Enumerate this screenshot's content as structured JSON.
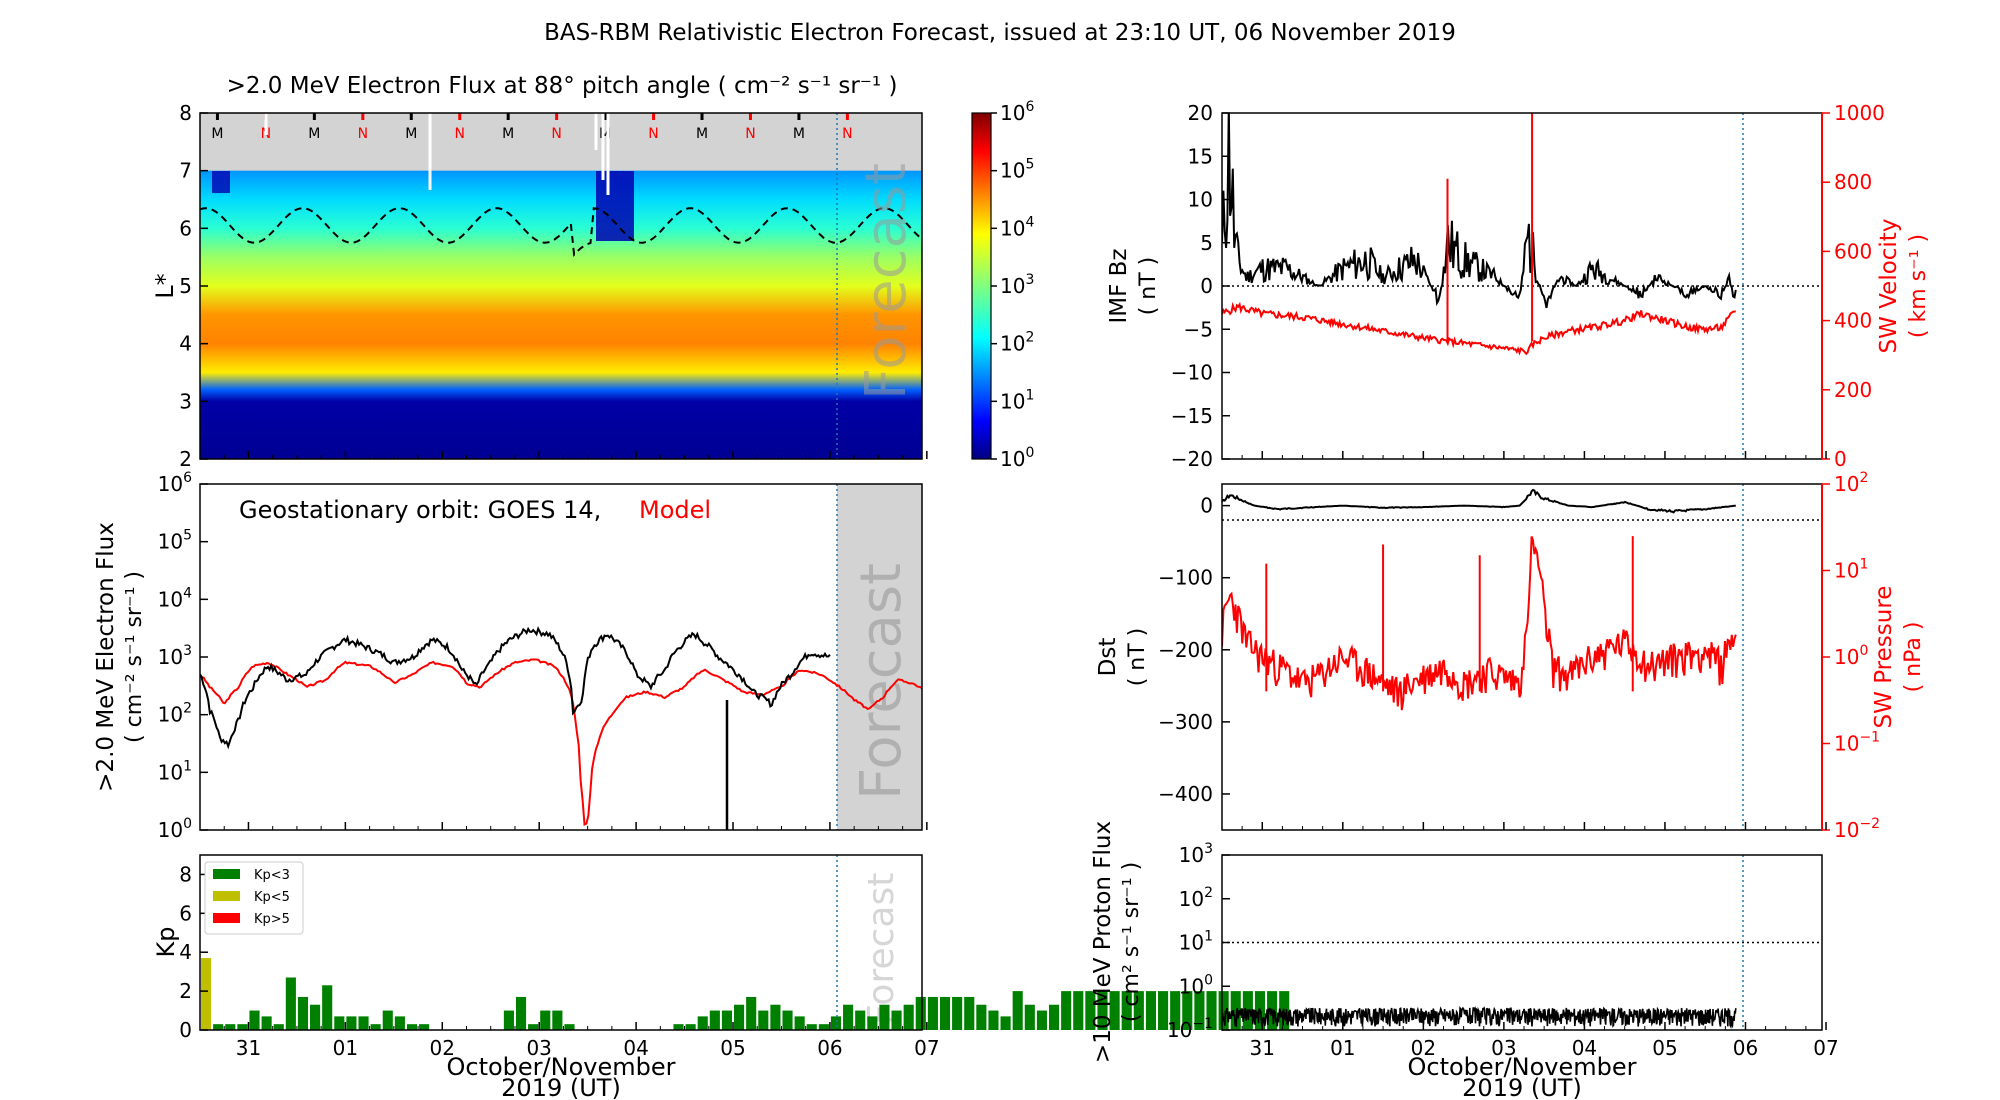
{
  "page_title": "BAS-RBM Relativistic Electron Forecast, issued at 23:10 UT, 06 November 2019",
  "colors": {
    "model": "#ff0000",
    "observed": "#000000",
    "kp_low": "#008000",
    "kp_mid": "#bfbf00",
    "kp_high": "#ff0000",
    "forecast_shade": "#d3d3d3",
    "forecast_line": "#1f77b4"
  },
  "shared_x_axis": {
    "tick_labels": [
      "31",
      "01",
      "02",
      "03",
      "04",
      "05",
      "06",
      "07"
    ],
    "label_line1": "October/November",
    "label_line2": "2019 (UT)",
    "forecast_start": "06 Nov 2019 ~11:00 UT"
  },
  "chart_data": [
    {
      "id": "lstar_flux_map",
      "type": "heatmap",
      "title": ">2.0 MeV Electron Flux at 88° pitch angle ( cm⁻² s⁻¹ sr⁻¹ )",
      "ylabel": "L*",
      "ylim": [
        2,
        8
      ],
      "yticks": [
        "2",
        "3",
        "4",
        "5",
        "6",
        "7",
        "8"
      ],
      "colorbar": {
        "scale": "log",
        "range": [
          1,
          1000000
        ],
        "tick_labels": [
          "10",
          "10",
          "10",
          "10",
          "10",
          "10",
          "10"
        ],
        "tick_exps": [
          "0",
          "1",
          "2",
          "3",
          "4",
          "5",
          "6"
        ],
        "colormap": "jet"
      },
      "outer_boundary_lstar": 7,
      "magnetopause_markers": [
        "M",
        "N",
        "M",
        "N",
        "M",
        "N",
        "M",
        "N",
        "M",
        "N",
        "M",
        "N",
        "M",
        "N"
      ],
      "watermark": "Forecast",
      "flux_profile_log10": [
        [
          2.0,
          0.1
        ],
        [
          3.0,
          0.2
        ],
        [
          3.2,
          1.2
        ],
        [
          3.5,
          4.0
        ],
        [
          4.0,
          4.6
        ],
        [
          4.5,
          4.5
        ],
        [
          5.0,
          3.7
        ],
        [
          5.5,
          3.2
        ],
        [
          6.0,
          2.4
        ],
        [
          6.5,
          1.9
        ],
        [
          7.0,
          1.5
        ]
      ]
    },
    {
      "id": "geo_flux",
      "type": "line",
      "title": "Geostationary orbit:   GOES 14,",
      "title_model": "Model",
      "ylabel": ">2.0 MeV Electron Flux",
      "ylabel2": "( cm⁻² s⁻¹ sr⁻¹ )",
      "yscale": "log",
      "ylim": [
        1,
        1000000
      ],
      "ytick_exps": [
        "0",
        "1",
        "2",
        "3",
        "4",
        "5",
        "6"
      ],
      "watermark": "Forecast",
      "series": [
        {
          "name": "GOES 14",
          "color": "#000000",
          "x": [
            0,
            0.1,
            0.2,
            0.3,
            0.4,
            0.55,
            0.7,
            0.9,
            1.1,
            1.3,
            1.5,
            1.75,
            2.0,
            2.2,
            2.4,
            2.55,
            2.7,
            2.85,
            3.0,
            3.2,
            3.4,
            3.6,
            3.78,
            3.85,
            3.95,
            4.05,
            4.2,
            4.35,
            4.5,
            4.65,
            4.8,
            4.95,
            5.1,
            5.2,
            5.35,
            5.5,
            5.7,
            5.9,
            6.1,
            6.3,
            6.5
          ],
          "y": [
            500,
            120,
            40,
            30,
            80,
            300,
            700,
            400,
            500,
            1200,
            2000,
            1400,
            800,
            1000,
            2000,
            1500,
            600,
            300,
            800,
            2000,
            3000,
            2500,
            800,
            100,
            200,
            1500,
            2500,
            1500,
            500,
            300,
            600,
            1500,
            2500,
            1800,
            1000,
            600,
            250,
            150,
            500,
            1200,
            1000
          ]
        },
        {
          "name": "Model",
          "color": "#ff0000",
          "x": [
            0,
            0.1,
            0.25,
            0.4,
            0.55,
            0.7,
            0.9,
            1.1,
            1.3,
            1.5,
            1.75,
            2.0,
            2.2,
            2.4,
            2.6,
            2.75,
            2.9,
            3.05,
            3.25,
            3.45,
            3.65,
            3.8,
            3.88,
            3.93,
            3.97,
            4.02,
            4.1,
            4.25,
            4.4,
            4.6,
            4.8,
            5.0,
            5.2,
            5.4,
            5.6,
            5.8,
            6.0,
            6.2,
            6.4,
            6.6,
            6.75,
            6.9,
            7.05,
            7.2,
            7.35,
            7.5
          ],
          "y": [
            500,
            300,
            150,
            300,
            700,
            800,
            500,
            300,
            400,
            800,
            700,
            350,
            500,
            800,
            700,
            350,
            300,
            500,
            800,
            900,
            700,
            300,
            60,
            5,
            1,
            2,
            30,
            100,
            200,
            250,
            200,
            300,
            600,
            400,
            250,
            220,
            300,
            600,
            500,
            300,
            180,
            120,
            200,
            400,
            350,
            250
          ]
        }
      ]
    },
    {
      "id": "kp_index",
      "type": "bar",
      "ylabel": "Kp",
      "ylim": [
        0,
        9
      ],
      "yticks": [
        "0",
        "2",
        "4",
        "6",
        "8"
      ],
      "bar_width_days": 0.125,
      "legend": [
        "Kp<3",
        "Kp<5",
        "Kp>5"
      ],
      "watermark": "Forecast",
      "values": [
        3.7,
        0.3,
        0.3,
        0.3,
        1.0,
        0.7,
        0.3,
        2.7,
        1.7,
        1.3,
        2.3,
        0.7,
        0.7,
        0.7,
        0.3,
        1.0,
        0.7,
        0.3,
        0.3,
        0,
        0,
        0,
        0,
        0,
        0,
        1.0,
        1.7,
        0.3,
        1.0,
        1.0,
        0.3,
        0,
        0,
        0,
        0,
        0,
        0,
        0,
        0,
        0.3,
        0.3,
        0.7,
        1.0,
        1.0,
        1.3,
        1.7,
        1.0,
        1.3,
        1.0,
        0.7,
        0.3,
        0.3,
        0.7,
        1.3,
        1.0,
        0.7,
        1.3,
        1.0,
        1.3,
        1.7,
        1.7,
        1.7,
        1.7,
        1.7,
        1.3,
        1.0,
        0.7,
        2.0,
        1.3,
        1.0,
        1.3,
        2.0,
        2.0,
        2.0,
        2.0,
        2.0,
        2.0,
        2.0,
        2.0,
        2.0,
        2.0,
        2.0,
        2.0,
        2.0,
        2.0,
        2.0,
        2.0,
        2.0,
        2.0,
        2.0
      ]
    },
    {
      "id": "imf_bz_sw_velocity",
      "type": "line",
      "ylabel": "IMF Bz",
      "ylabel_units": "( nT )",
      "ylim": [
        -20,
        20
      ],
      "yticks": [
        "−20",
        "−15",
        "−10",
        "−5",
        "0",
        "5",
        "10",
        "15",
        "20"
      ],
      "ylabel_right": "SW Velocity",
      "ylabel_right_units": "( km s⁻¹ )",
      "ylim_right": [
        0,
        1000
      ],
      "yticks_right": [
        "0",
        "200",
        "400",
        "600",
        "800",
        "1000"
      ],
      "series": [
        {
          "name": "IMF Bz",
          "color": "#000000",
          "x": [
            0,
            0.05,
            0.1,
            0.15,
            0.2,
            0.3,
            0.5,
            0.8,
            1.0,
            1.2,
            1.5,
            1.8,
            2.0,
            2.2,
            2.4,
            2.6,
            2.7,
            2.8,
            3.0,
            3.2,
            3.4,
            3.6,
            3.7,
            3.8,
            3.9,
            4.0,
            4.2,
            4.4,
            4.6,
            4.8,
            5.0,
            5.2,
            5.4,
            5.6,
            5.8,
            6.0,
            6.2,
            6.3,
            6.38
          ],
          "y": [
            4,
            12,
            16,
            6,
            3,
            1,
            2,
            2,
            1,
            0,
            2,
            3,
            1,
            2,
            3,
            0,
            -2,
            5,
            3,
            2,
            1,
            -1,
            -1,
            6,
            2,
            -2,
            1,
            0,
            2,
            1,
            0,
            -1,
            1,
            0,
            -1,
            0,
            -1,
            1,
            -2
          ]
        },
        {
          "name": "SW Velocity",
          "color": "#ff0000",
          "x": [
            0,
            0.2,
            0.5,
            1.0,
            1.5,
            2.0,
            2.5,
            2.8,
            3.0,
            3.5,
            3.8,
            3.85,
            4.0,
            4.3,
            4.6,
            5.0,
            5.2,
            5.5,
            5.8,
            6.0,
            6.2,
            6.38
          ],
          "y": [
            420,
            440,
            420,
            410,
            390,
            370,
            350,
            340,
            335,
            320,
            310,
            330,
            350,
            370,
            380,
            400,
            420,
            400,
            380,
            375,
            380,
            430
          ]
        }
      ],
      "spikes_right": [
        [
          2.8,
          810
        ],
        [
          3.85,
          1000
        ]
      ]
    },
    {
      "id": "dst_sw_pressure",
      "type": "line",
      "ylabel": "Dst",
      "ylabel_units": "( nT )",
      "ylim": [
        -450,
        30
      ],
      "yticks": [
        "−400",
        "−300",
        "−200",
        "−100",
        "0"
      ],
      "ylabel_right": "SW Pressure",
      "ylabel_right_units": "( nPa )",
      "yscale_right": "log",
      "ylim_right": [
        0.01,
        100
      ],
      "ytick_exps_right": [
        "−2",
        "−1",
        "0",
        "1",
        "2"
      ],
      "series": [
        {
          "name": "Dst",
          "color": "#000000",
          "x": [
            0,
            0.1,
            0.2,
            0.4,
            0.7,
            1.0,
            1.5,
            2.0,
            2.5,
            3.0,
            3.5,
            3.7,
            3.85,
            4.0,
            4.3,
            4.6,
            5.0,
            5.3,
            5.6,
            6.0,
            6.38
          ],
          "y": [
            5,
            15,
            10,
            0,
            -5,
            -3,
            0,
            -3,
            -2,
            0,
            -2,
            0,
            20,
            10,
            0,
            -2,
            5,
            -5,
            -8,
            -5,
            0
          ]
        },
        {
          "name": "SW Pressure",
          "color": "#ff0000",
          "x": [
            0,
            0.1,
            0.2,
            0.3,
            0.5,
            0.8,
            1.0,
            1.2,
            1.5,
            1.8,
            2.0,
            2.2,
            2.5,
            2.8,
            3.0,
            3.3,
            3.5,
            3.7,
            3.8,
            3.85,
            3.9,
            4.0,
            4.1,
            4.3,
            4.6,
            5.0,
            5.3,
            5.6,
            6.0,
            6.2,
            6.38
          ],
          "y": [
            2,
            5,
            3,
            1.5,
            1.0,
            0.7,
            0.5,
            0.6,
            1.0,
            0.7,
            0.5,
            0.4,
            0.6,
            0.8,
            0.5,
            0.7,
            0.6,
            0.5,
            2,
            20,
            15,
            3,
            0.8,
            0.6,
            1.0,
            1.5,
            0.8,
            1.0,
            1.2,
            0.8,
            2
          ]
        }
      ],
      "spikes_right": [
        [
          0.55,
          12
        ],
        [
          2.0,
          20
        ],
        [
          3.2,
          15
        ],
        [
          5.1,
          25
        ]
      ]
    },
    {
      "id": "proton_flux",
      "type": "line",
      "ylabel": ">10 MeV Proton Flux",
      "ylabel2": "( cm² s⁻¹ sr⁻¹ )",
      "yscale": "log",
      "ylim": [
        0.1,
        1000
      ],
      "ytick_exps": [
        "−1",
        "0",
        "1",
        "2",
        "3"
      ],
      "threshold": 10,
      "series": [
        {
          "name": ">10 MeV protons",
          "color": "#000000",
          "x_range": [
            0,
            6.38
          ],
          "level": 0.22,
          "spread": 0.1
        }
      ]
    }
  ]
}
